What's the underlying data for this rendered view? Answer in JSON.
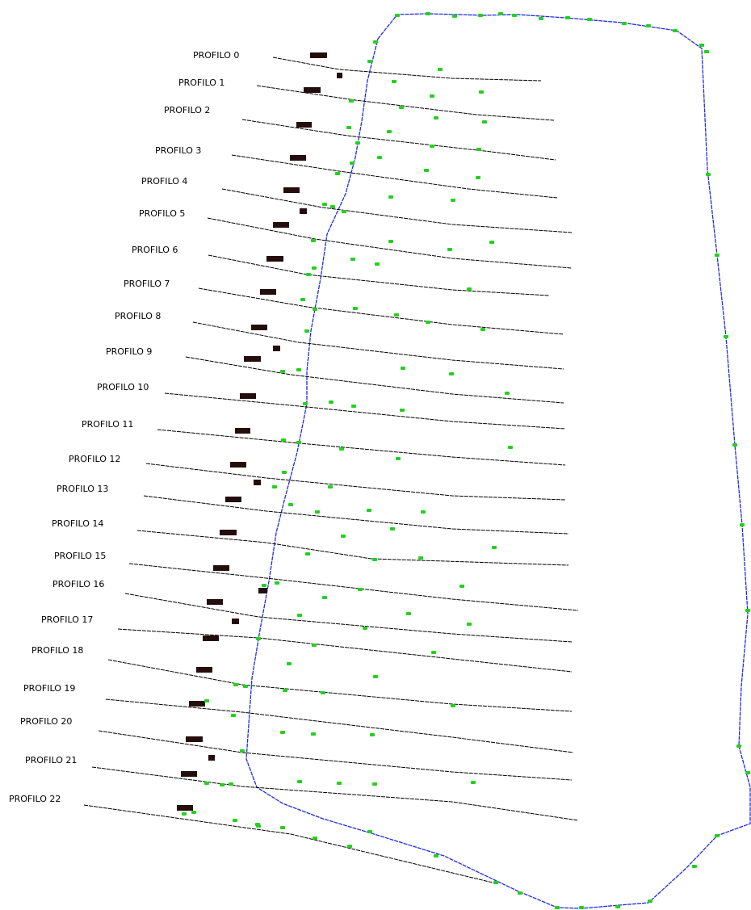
{
  "profiles": [
    {
      "label": "PROFILO 0"
    },
    {
      "label": "PROFILO 1"
    },
    {
      "label": "PROFILO 2"
    },
    {
      "label": "PROFILO 3"
    },
    {
      "label": "PROFILO 4"
    },
    {
      "label": "PROFILO 5"
    },
    {
      "label": "PROFILO 6"
    },
    {
      "label": "PROFILO 7"
    },
    {
      "label": "PROFILO 8"
    },
    {
      "label": "PROFILO 9"
    },
    {
      "label": "PROFILO 10"
    },
    {
      "label": "PROFILO 11"
    },
    {
      "label": "PROFILO 12"
    },
    {
      "label": "PROFILO 13"
    },
    {
      "label": "PROFILO 14"
    },
    {
      "label": "PROFILO 15"
    },
    {
      "label": "PROFILO 16"
    },
    {
      "label": "PROFILO 17"
    },
    {
      "label": "PROFILO 18"
    },
    {
      "label": "PROFILO 19"
    },
    {
      "label": "PROFILO 20"
    },
    {
      "label": "PROFILO 21"
    },
    {
      "label": "PROFILO 22"
    }
  ],
  "colors": {
    "background": "#ffffff",
    "profile_line": "#000000",
    "boundary": "#1f2be0",
    "survey_point": "#23d11d",
    "marker": "#240d0d"
  }
}
